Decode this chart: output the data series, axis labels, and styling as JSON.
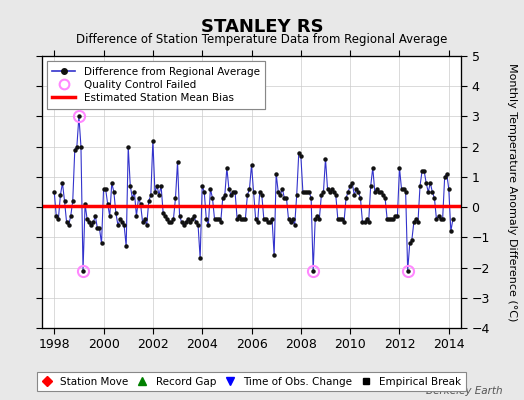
{
  "title": "STANLEY RS",
  "subtitle": "Difference of Station Temperature Data from Regional Average",
  "ylabel": "Monthly Temperature Anomaly Difference (°C)",
  "xlim": [
    1997.5,
    2014.5
  ],
  "ylim": [
    -4,
    5
  ],
  "yticks": [
    -4,
    -3,
    -2,
    -1,
    0,
    1,
    2,
    3,
    4,
    5
  ],
  "xticks": [
    1998,
    2000,
    2002,
    2004,
    2006,
    2008,
    2010,
    2012,
    2014
  ],
  "bias_value": 0.05,
  "fig_bg_color": "#e8e8e8",
  "plot_bg_color": "#ffffff",
  "line_color": "#3333cc",
  "bias_color": "#ff0000",
  "qc_color": "#ff88ff",
  "watermark": "Berkeley Earth",
  "time_series": [
    1998.0,
    0.5,
    1998.083,
    -0.3,
    1998.167,
    -0.4,
    1998.25,
    0.4,
    1998.333,
    0.8,
    1998.417,
    0.2,
    1998.5,
    -0.5,
    1998.583,
    -0.6,
    1998.667,
    -0.3,
    1998.75,
    0.2,
    1998.833,
    1.9,
    1998.917,
    2.0,
    1999.0,
    3.0,
    1999.083,
    2.0,
    1999.167,
    -2.1,
    1999.25,
    0.1,
    1999.333,
    -0.4,
    1999.417,
    -0.5,
    1999.5,
    -0.6,
    1999.583,
    -0.5,
    1999.667,
    -0.3,
    1999.75,
    -0.7,
    1999.833,
    -0.7,
    1999.917,
    -1.2,
    2000.0,
    0.6,
    2000.083,
    0.6,
    2000.167,
    0.1,
    2000.25,
    -0.3,
    2000.333,
    0.8,
    2000.417,
    0.5,
    2000.5,
    -0.2,
    2000.583,
    -0.6,
    2000.667,
    -0.4,
    2000.75,
    -0.5,
    2000.833,
    -0.6,
    2000.917,
    -1.3,
    2001.0,
    2.0,
    2001.083,
    0.7,
    2001.167,
    0.3,
    2001.25,
    0.5,
    2001.333,
    -0.3,
    2001.417,
    0.3,
    2001.5,
    0.1,
    2001.583,
    -0.5,
    2001.667,
    -0.4,
    2001.75,
    -0.6,
    2001.833,
    0.2,
    2001.917,
    0.4,
    2002.0,
    2.2,
    2002.083,
    0.5,
    2002.167,
    0.7,
    2002.25,
    0.4,
    2002.333,
    0.7,
    2002.417,
    -0.2,
    2002.5,
    -0.3,
    2002.583,
    -0.4,
    2002.667,
    -0.5,
    2002.75,
    -0.5,
    2002.833,
    -0.4,
    2002.917,
    0.3,
    2003.0,
    1.5,
    2003.083,
    -0.3,
    2003.167,
    -0.5,
    2003.25,
    -0.6,
    2003.333,
    -0.5,
    2003.417,
    -0.4,
    2003.5,
    -0.5,
    2003.583,
    -0.4,
    2003.667,
    -0.3,
    2003.75,
    -0.5,
    2003.833,
    -0.6,
    2003.917,
    -1.7,
    2004.0,
    0.7,
    2004.083,
    0.5,
    2004.167,
    -0.4,
    2004.25,
    -0.6,
    2004.333,
    0.6,
    2004.417,
    0.3,
    2004.5,
    -0.4,
    2004.583,
    -0.4,
    2004.667,
    -0.4,
    2004.75,
    -0.5,
    2004.833,
    0.3,
    2004.917,
    0.4,
    2005.0,
    1.3,
    2005.083,
    0.6,
    2005.167,
    0.4,
    2005.25,
    0.5,
    2005.333,
    0.5,
    2005.417,
    -0.4,
    2005.5,
    -0.3,
    2005.583,
    -0.4,
    2005.667,
    -0.4,
    2005.75,
    -0.4,
    2005.833,
    0.4,
    2005.917,
    0.6,
    2006.0,
    1.4,
    2006.083,
    0.5,
    2006.167,
    -0.4,
    2006.25,
    -0.5,
    2006.333,
    0.5,
    2006.417,
    0.4,
    2006.5,
    -0.4,
    2006.583,
    -0.4,
    2006.667,
    -0.5,
    2006.75,
    -0.5,
    2006.833,
    -0.4,
    2006.917,
    -1.6,
    2007.0,
    1.1,
    2007.083,
    0.5,
    2007.167,
    0.4,
    2007.25,
    0.6,
    2007.333,
    0.3,
    2007.417,
    0.3,
    2007.5,
    -0.4,
    2007.583,
    -0.5,
    2007.667,
    -0.4,
    2007.75,
    -0.6,
    2007.833,
    0.4,
    2007.917,
    1.8,
    2008.0,
    1.7,
    2008.083,
    0.5,
    2008.167,
    0.5,
    2008.25,
    0.5,
    2008.333,
    0.5,
    2008.417,
    0.3,
    2008.5,
    -2.1,
    2008.583,
    -0.4,
    2008.667,
    -0.3,
    2008.75,
    -0.4,
    2008.833,
    0.4,
    2008.917,
    0.5,
    2009.0,
    1.6,
    2009.083,
    0.6,
    2009.167,
    0.5,
    2009.25,
    0.6,
    2009.333,
    0.5,
    2009.417,
    0.4,
    2009.5,
    -0.4,
    2009.583,
    -0.4,
    2009.667,
    -0.4,
    2009.75,
    -0.5,
    2009.833,
    0.3,
    2009.917,
    0.5,
    2010.0,
    0.7,
    2010.083,
    0.8,
    2010.167,
    0.4,
    2010.25,
    0.6,
    2010.333,
    0.5,
    2010.417,
    0.3,
    2010.5,
    -0.5,
    2010.583,
    -0.5,
    2010.667,
    -0.4,
    2010.75,
    -0.5,
    2010.833,
    0.7,
    2010.917,
    1.3,
    2011.0,
    0.5,
    2011.083,
    0.6,
    2011.167,
    0.5,
    2011.25,
    0.5,
    2011.333,
    0.4,
    2011.417,
    0.3,
    2011.5,
    -0.4,
    2011.583,
    -0.4,
    2011.667,
    -0.4,
    2011.75,
    -0.4,
    2011.833,
    -0.3,
    2011.917,
    -0.3,
    2012.0,
    1.3,
    2012.083,
    0.6,
    2012.167,
    0.6,
    2012.25,
    0.5,
    2012.333,
    -2.1,
    2012.417,
    -1.2,
    2012.5,
    -1.1,
    2012.583,
    -0.5,
    2012.667,
    -0.4,
    2012.75,
    -0.5,
    2012.833,
    0.7,
    2012.917,
    1.2,
    2013.0,
    1.2,
    2013.083,
    0.8,
    2013.167,
    0.5,
    2013.25,
    0.8,
    2013.333,
    0.5,
    2013.417,
    0.3,
    2013.5,
    -0.4,
    2013.583,
    -0.3,
    2013.667,
    -0.4,
    2013.75,
    -0.4,
    2013.833,
    1.0,
    2013.917,
    1.1,
    2014.0,
    0.6,
    2014.083,
    -0.8,
    2014.167,
    -0.4
  ],
  "qc_failed_times": [
    1999.0,
    1999.167,
    2008.5,
    2012.333
  ],
  "qc_failed_values": [
    3.0,
    -2.1,
    -2.1,
    -2.1
  ]
}
